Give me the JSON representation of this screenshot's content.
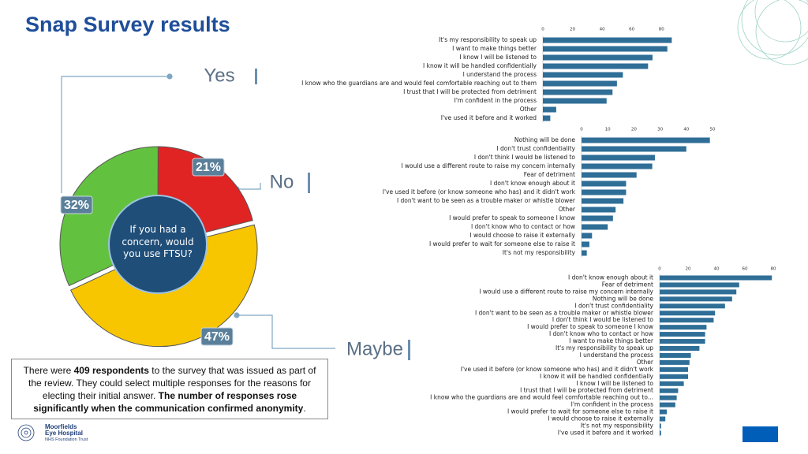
{
  "title": "Snap Survey results",
  "chart_data": [
    {
      "type": "pie",
      "label": "If you had a concern, would you use FTSU?",
      "categories": [
        "Yes",
        "No",
        "Maybe"
      ],
      "values": [
        32,
        21,
        47
      ],
      "value_labels": [
        "32%",
        "21%",
        "47%"
      ],
      "colors": [
        "#62c23f",
        "#e02424",
        "#f7c600"
      ]
    },
    {
      "type": "bar",
      "orientation": "horizontal",
      "color": "#2f6e97",
      "xlim": [
        0,
        90
      ],
      "xticks": [
        0,
        20,
        40,
        60,
        80
      ],
      "categories": [
        "It's my responsibility to speak up",
        "I want to make things better",
        "I know I will be listened to",
        "I know it will be handled confidentially",
        "I understand the process",
        "I know who the guardians are and would feel comfortable reaching out to them",
        "I trust that I will be protected from detriment",
        "I'm confident in the process",
        "Other",
        "I've used it before and it worked"
      ],
      "values": [
        87,
        84,
        74,
        71,
        54,
        50,
        47,
        43,
        9,
        5
      ]
    },
    {
      "type": "bar",
      "orientation": "horizontal",
      "color": "#2f6e97",
      "xlim": [
        0,
        50
      ],
      "xticks": [
        0,
        10,
        20,
        30,
        40,
        50
      ],
      "categories": [
        "Nothing will be done",
        "I don't trust confidentiality",
        "I don't think I would be listened to",
        "I would use a different route to raise my concern internally",
        "Fear of detriment",
        "I don't know enough about it",
        "I've used it before (or know someone who has) and it didn't work",
        "I don't want to be seen as a trouble maker or whistle blower",
        "Other",
        "I would prefer to speak to someone I know",
        "I don't know who to contact or how",
        "I would choose to raise it externally",
        "I would prefer to wait for someone else to raise it",
        "It's not my responsibility"
      ],
      "values": [
        49,
        40,
        28,
        27,
        21,
        17,
        17,
        16,
        13,
        12,
        10,
        4,
        3,
        2
      ]
    },
    {
      "type": "bar",
      "orientation": "horizontal",
      "color": "#2f6e97",
      "xlim": [
        0,
        80
      ],
      "xticks": [
        0,
        20,
        40,
        60,
        80
      ],
      "categories": [
        "I don't know enough about it",
        "Fear of detriment",
        "I would use a different route to raise my concern internally",
        "Nothing will be done",
        "I don't trust confidentiality",
        "I don't want to be seen as a trouble maker or whistle blower",
        "I don't think I would be listened to",
        "I would prefer to speak to someone I know",
        "I don't know who to contact or how",
        "I want to make things better",
        "It's my responsibility to speak up",
        "I understand the process",
        "Other",
        "I've used it before (or know someone who has) and it didn't work",
        "I know it will be handled confidentially",
        "I know I will be listened to",
        "I trust that I will be protected from detriment",
        "I know who the guardians are and would feel comfortable reaching out to...",
        "I'm confident in the process",
        "I would prefer to wait for someone else to raise it",
        "I would choose to raise it externally",
        "It's not my responsibility",
        "I've used it before and it worked"
      ],
      "values": [
        79,
        56,
        54,
        51,
        46,
        39,
        38,
        33,
        32,
        32,
        28,
        22,
        21,
        20,
        20,
        17,
        13,
        12,
        11,
        5,
        4,
        1,
        1
      ]
    }
  ],
  "note": [
    "There were ",
    "409 respondents",
    " to the survey that was issued as part of the review. They could select multiple responses for the reasons for electing their initial answer. ",
    "The number of responses rose significantly when the communication confirmed anonymity",
    "."
  ],
  "logo": [
    "Moorfields",
    "Eye Hospital",
    "NHS Foundation Trust"
  ]
}
